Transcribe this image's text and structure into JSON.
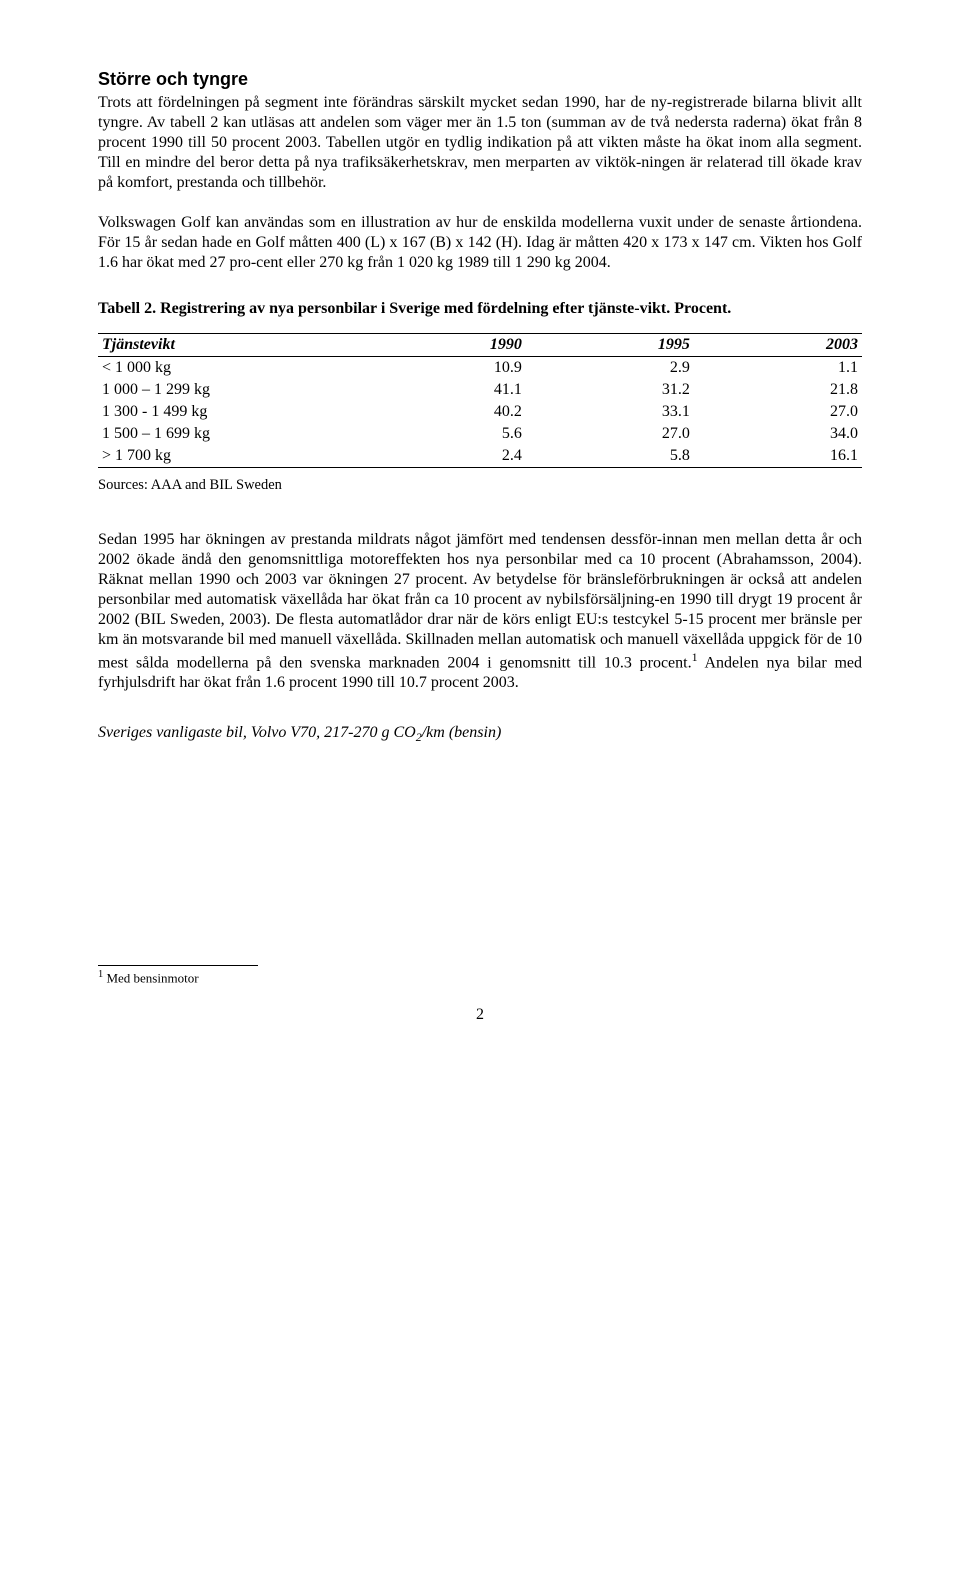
{
  "heading": "Större och tyngre",
  "paragraphs": {
    "p1": "Trots att fördelningen på segment inte förändras särskilt mycket sedan 1990, har de ny-registrerade bilarna blivit allt tyngre. Av tabell 2 kan utläsas att andelen som väger mer än 1.5 ton (summan av de två nedersta raderna) ökat från 8 procent 1990 till 50 procent 2003. Tabellen utgör en tydlig indikation på att vikten måste ha ökat inom alla segment. Till en mindre del beror detta på nya trafiksäkerhetskrav, men merparten av viktök-ningen är relaterad till ökade krav på komfort, prestanda och tillbehör.",
    "p2": "Volkswagen Golf kan användas som en illustration av hur de enskilda modellerna vuxit under de senaste årtiondena. För 15 år sedan hade en Golf måtten 400 (L) x 167 (B) x 142 (H). Idag är måtten 420 x 173 x 147 cm. Vikten hos Golf 1.6 har ökat med 27 pro-cent eller 270 kg från 1 020 kg 1989 till 1 290 kg 2004.",
    "p3_a": "Sedan 1995 har ökningen av prestanda mildrats något jämfört med tendensen dessför-innan men mellan detta år och 2002 ökade ändå den genomsnittliga motoreffekten hos nya personbilar med ca 10 procent (Abrahamsson, 2004). Räknat mellan 1990 och 2003 var ökningen 27 procent. Av betydelse för bränsleförbrukningen är också att andelen personbilar med automatisk växellåda har ökat från ca 10 procent av nybilsförsäljning-en 1990 till drygt 19 procent år 2002 (BIL Sweden, 2003). De flesta automatlådor drar när de körs enligt EU:s testcykel 5-15 procent mer bränsle per km än motsvarande bil med manuell växellåda. Skillnaden mellan automatisk och manuell växellåda uppgick för de 10 mest sålda modellerna på den svenska marknaden 2004 i genomsnitt till 10.3 procent.",
    "p3_b": " Andelen nya bilar med fyrhjulsdrift har ökat från 1.6 procent 1990 till 10.7 procent 2003."
  },
  "table_caption": "Tabell 2. Registrering av nya personbilar i Sverige med fördelning efter tjänste-vikt. Procent.",
  "table": {
    "columns": [
      "Tjänstevikt",
      "1990",
      "1995",
      "2003"
    ],
    "rows": [
      [
        "< 1 000 kg",
        "10.9",
        "2.9",
        "1.1"
      ],
      [
        "1 000 – 1 299 kg",
        "41.1",
        "31.2",
        "21.8"
      ],
      [
        "1 300 - 1 499 kg",
        "40.2",
        "33.1",
        "27.0"
      ],
      [
        "1 500 – 1 699 kg",
        "5.6",
        "27.0",
        "34.0"
      ],
      [
        "> 1 700 kg",
        "2.4",
        "5.8",
        "16.1"
      ]
    ]
  },
  "sources": "Sources: AAA and BIL Sweden",
  "italic_line_pre": "Sveriges vanligaste bil, Volvo V70, 217-270 g CO",
  "italic_line_sub": "2",
  "italic_line_post": "/km (bensin)",
  "footnote_marker": "1",
  "footnote_text": " Med bensinmotor",
  "page_number": "2"
}
